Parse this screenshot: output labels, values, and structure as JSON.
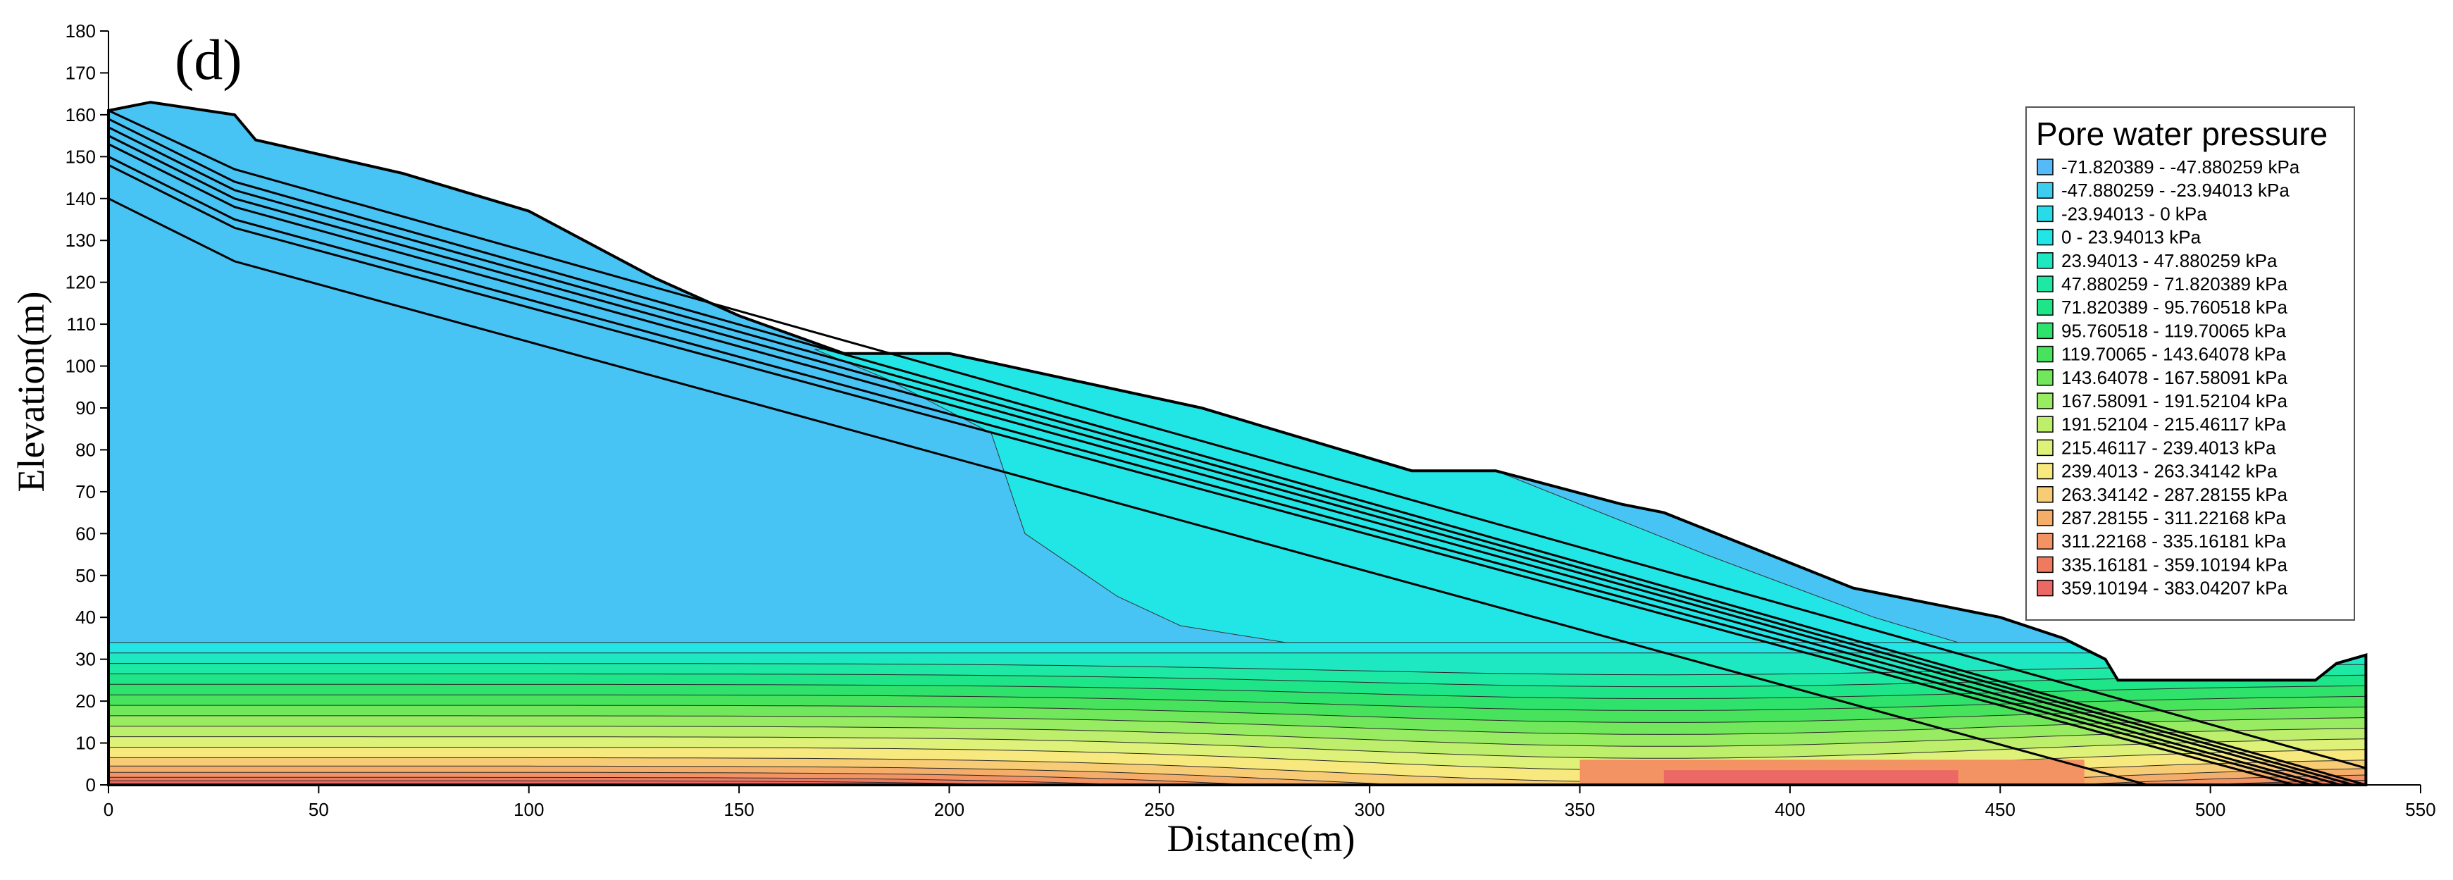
{
  "chart_data": {
    "type": "heatmap",
    "panel_label": "(d)",
    "xlabel": "Distance(m)",
    "ylabel": "Elevation(m)",
    "xlim": [
      0,
      550
    ],
    "ylim": [
      0,
      180
    ],
    "x_ticks": [
      0,
      50,
      100,
      150,
      200,
      250,
      300,
      350,
      400,
      450,
      500,
      550
    ],
    "y_ticks": [
      0,
      10,
      20,
      30,
      40,
      50,
      60,
      70,
      80,
      90,
      100,
      110,
      120,
      130,
      140,
      150,
      160,
      170,
      180
    ],
    "grid": false,
    "legend": {
      "title": "Pore water pressure",
      "placement": "top-right",
      "entries": [
        {
          "label": "-71.820389 - -47.880259 kPa",
          "color": "#56b9f8"
        },
        {
          "label": "-47.880259 - -23.94013 kPa",
          "color": "#3ccdef"
        },
        {
          "label": "-23.94013 - 0 kPa",
          "color": "#27dbe8"
        },
        {
          "label": "0 - 23.94013 kPa",
          "color": "#22e6e6"
        },
        {
          "label": "23.94013 - 47.880259 kPa",
          "color": "#1ee8c2"
        },
        {
          "label": "47.880259 - 71.820389 kPa",
          "color": "#1de8a4"
        },
        {
          "label": "71.820389 - 95.760518 kPa",
          "color": "#1ee588"
        },
        {
          "label": "95.760518 - 119.70065 kPa",
          "color": "#2ee26c"
        },
        {
          "label": "119.70065 - 143.64078 kPa",
          "color": "#47e35c"
        },
        {
          "label": "143.64078 - 167.58091 kPa",
          "color": "#71e85c"
        },
        {
          "label": "167.58091 - 191.52104 kPa",
          "color": "#98ec62"
        },
        {
          "label": "191.52104 - 215.46117 kPa",
          "color": "#bdef6c"
        },
        {
          "label": "215.46117 - 239.4013 kPa",
          "color": "#def27a"
        },
        {
          "label": "239.4013 - 263.34142 kPa",
          "color": "#f8e97e"
        },
        {
          "label": "263.34142 - 287.28155 kPa",
          "color": "#f7cc74"
        },
        {
          "label": "287.28155 - 311.22168 kPa",
          "color": "#f5ae6a"
        },
        {
          "label": "311.22168 - 335.16181 kPa",
          "color": "#f39262"
        },
        {
          "label": "335.16181 - 359.10194 kPa",
          "color": "#ef7a5e"
        },
        {
          "label": "359.10194 - 383.04207 kPa",
          "color": "#ec6865"
        }
      ]
    },
    "slope_surface": [
      [
        0,
        161
      ],
      [
        10,
        163
      ],
      [
        30,
        160
      ],
      [
        35,
        154
      ],
      [
        70,
        146
      ],
      [
        100,
        137
      ],
      [
        130,
        121
      ],
      [
        150,
        112
      ],
      [
        175,
        103
      ],
      [
        200,
        103
      ],
      [
        260,
        90
      ],
      [
        310,
        75
      ],
      [
        330,
        75
      ],
      [
        360,
        67
      ],
      [
        370,
        65
      ],
      [
        400,
        53
      ],
      [
        415,
        47
      ],
      [
        425,
        45
      ],
      [
        450,
        40
      ],
      [
        465,
        35
      ],
      [
        475,
        30
      ],
      [
        478,
        25
      ],
      [
        525,
        25
      ],
      [
        530,
        29
      ],
      [
        537,
        31
      ],
      [
        537,
        0
      ]
    ],
    "layer_boundaries": [
      {
        "points": [
          [
            0,
            140
          ],
          [
            30,
            125
          ],
          [
            485,
            0
          ]
        ]
      },
      {
        "points": [
          [
            0,
            148
          ],
          [
            30,
            133
          ],
          [
            520,
            0
          ]
        ]
      },
      {
        "points": [
          [
            0,
            150
          ],
          [
            30,
            135
          ],
          [
            524,
            0
          ]
        ]
      },
      {
        "points": [
          [
            0,
            153
          ],
          [
            30,
            138
          ],
          [
            527,
            0
          ]
        ]
      },
      {
        "points": [
          [
            0,
            155
          ],
          [
            30,
            140
          ],
          [
            531,
            0
          ]
        ]
      },
      {
        "points": [
          [
            0,
            157
          ],
          [
            30,
            142
          ],
          [
            534,
            0
          ]
        ]
      },
      {
        "points": [
          [
            0,
            159
          ],
          [
            30,
            144
          ],
          [
            537,
            0
          ]
        ]
      },
      {
        "points": [
          [
            0,
            161
          ],
          [
            30,
            147
          ],
          [
            537,
            4
          ]
        ]
      }
    ]
  }
}
